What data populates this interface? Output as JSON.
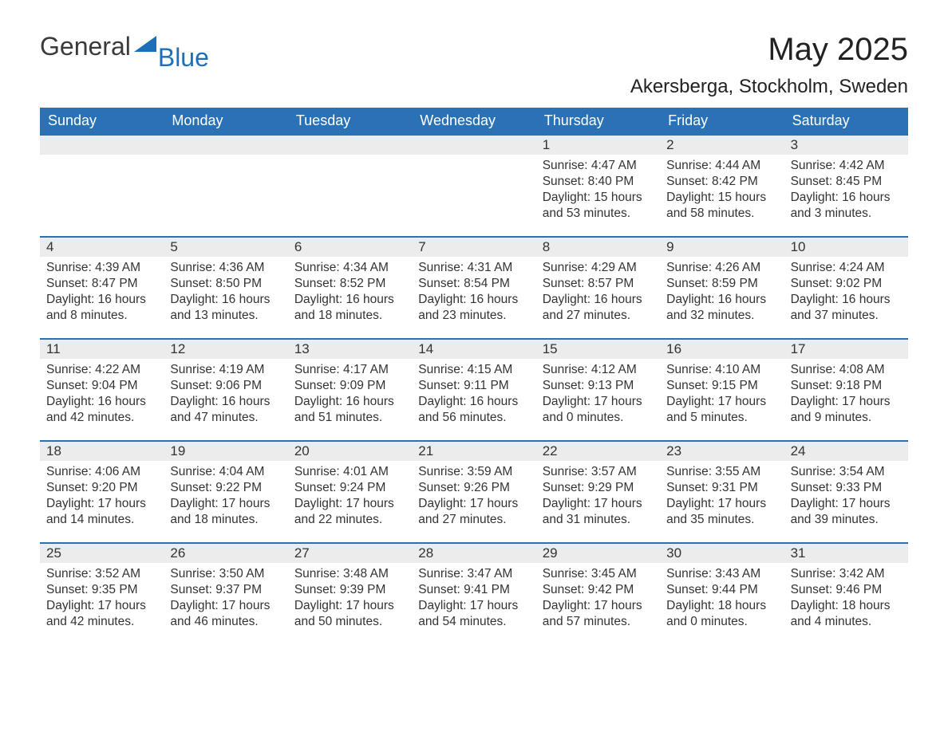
{
  "logo": {
    "text1": "General",
    "text2": "Blue",
    "accent_color": "#1d6fb8"
  },
  "title": {
    "month_year": "May 2025",
    "location": "Akersberga, Stockholm, Sweden"
  },
  "colors": {
    "header_bg": "#2a72b5",
    "header_text": "#ffffff",
    "row_border": "#2a72b5",
    "daynum_bg": "#ececec",
    "body_text": "#333333",
    "page_bg": "#ffffff"
  },
  "fonts": {
    "month_year_size": 40,
    "location_size": 24,
    "dow_size": 18,
    "daynum_size": 17,
    "body_size": 15.5
  },
  "days_of_week": [
    "Sunday",
    "Monday",
    "Tuesday",
    "Wednesday",
    "Thursday",
    "Friday",
    "Saturday"
  ],
  "weeks": [
    [
      {
        "empty": true
      },
      {
        "empty": true
      },
      {
        "empty": true
      },
      {
        "empty": true
      },
      {
        "num": "1",
        "sunrise": "Sunrise: 4:47 AM",
        "sunset": "Sunset: 8:40 PM",
        "daylight": "Daylight: 15 hours and 53 minutes."
      },
      {
        "num": "2",
        "sunrise": "Sunrise: 4:44 AM",
        "sunset": "Sunset: 8:42 PM",
        "daylight": "Daylight: 15 hours and 58 minutes."
      },
      {
        "num": "3",
        "sunrise": "Sunrise: 4:42 AM",
        "sunset": "Sunset: 8:45 PM",
        "daylight": "Daylight: 16 hours and 3 minutes."
      }
    ],
    [
      {
        "num": "4",
        "sunrise": "Sunrise: 4:39 AM",
        "sunset": "Sunset: 8:47 PM",
        "daylight": "Daylight: 16 hours and 8 minutes."
      },
      {
        "num": "5",
        "sunrise": "Sunrise: 4:36 AM",
        "sunset": "Sunset: 8:50 PM",
        "daylight": "Daylight: 16 hours and 13 minutes."
      },
      {
        "num": "6",
        "sunrise": "Sunrise: 4:34 AM",
        "sunset": "Sunset: 8:52 PM",
        "daylight": "Daylight: 16 hours and 18 minutes."
      },
      {
        "num": "7",
        "sunrise": "Sunrise: 4:31 AM",
        "sunset": "Sunset: 8:54 PM",
        "daylight": "Daylight: 16 hours and 23 minutes."
      },
      {
        "num": "8",
        "sunrise": "Sunrise: 4:29 AM",
        "sunset": "Sunset: 8:57 PM",
        "daylight": "Daylight: 16 hours and 27 minutes."
      },
      {
        "num": "9",
        "sunrise": "Sunrise: 4:26 AM",
        "sunset": "Sunset: 8:59 PM",
        "daylight": "Daylight: 16 hours and 32 minutes."
      },
      {
        "num": "10",
        "sunrise": "Sunrise: 4:24 AM",
        "sunset": "Sunset: 9:02 PM",
        "daylight": "Daylight: 16 hours and 37 minutes."
      }
    ],
    [
      {
        "num": "11",
        "sunrise": "Sunrise: 4:22 AM",
        "sunset": "Sunset: 9:04 PM",
        "daylight": "Daylight: 16 hours and 42 minutes."
      },
      {
        "num": "12",
        "sunrise": "Sunrise: 4:19 AM",
        "sunset": "Sunset: 9:06 PM",
        "daylight": "Daylight: 16 hours and 47 minutes."
      },
      {
        "num": "13",
        "sunrise": "Sunrise: 4:17 AM",
        "sunset": "Sunset: 9:09 PM",
        "daylight": "Daylight: 16 hours and 51 minutes."
      },
      {
        "num": "14",
        "sunrise": "Sunrise: 4:15 AM",
        "sunset": "Sunset: 9:11 PM",
        "daylight": "Daylight: 16 hours and 56 minutes."
      },
      {
        "num": "15",
        "sunrise": "Sunrise: 4:12 AM",
        "sunset": "Sunset: 9:13 PM",
        "daylight": "Daylight: 17 hours and 0 minutes."
      },
      {
        "num": "16",
        "sunrise": "Sunrise: 4:10 AM",
        "sunset": "Sunset: 9:15 PM",
        "daylight": "Daylight: 17 hours and 5 minutes."
      },
      {
        "num": "17",
        "sunrise": "Sunrise: 4:08 AM",
        "sunset": "Sunset: 9:18 PM",
        "daylight": "Daylight: 17 hours and 9 minutes."
      }
    ],
    [
      {
        "num": "18",
        "sunrise": "Sunrise: 4:06 AM",
        "sunset": "Sunset: 9:20 PM",
        "daylight": "Daylight: 17 hours and 14 minutes."
      },
      {
        "num": "19",
        "sunrise": "Sunrise: 4:04 AM",
        "sunset": "Sunset: 9:22 PM",
        "daylight": "Daylight: 17 hours and 18 minutes."
      },
      {
        "num": "20",
        "sunrise": "Sunrise: 4:01 AM",
        "sunset": "Sunset: 9:24 PM",
        "daylight": "Daylight: 17 hours and 22 minutes."
      },
      {
        "num": "21",
        "sunrise": "Sunrise: 3:59 AM",
        "sunset": "Sunset: 9:26 PM",
        "daylight": "Daylight: 17 hours and 27 minutes."
      },
      {
        "num": "22",
        "sunrise": "Sunrise: 3:57 AM",
        "sunset": "Sunset: 9:29 PM",
        "daylight": "Daylight: 17 hours and 31 minutes."
      },
      {
        "num": "23",
        "sunrise": "Sunrise: 3:55 AM",
        "sunset": "Sunset: 9:31 PM",
        "daylight": "Daylight: 17 hours and 35 minutes."
      },
      {
        "num": "24",
        "sunrise": "Sunrise: 3:54 AM",
        "sunset": "Sunset: 9:33 PM",
        "daylight": "Daylight: 17 hours and 39 minutes."
      }
    ],
    [
      {
        "num": "25",
        "sunrise": "Sunrise: 3:52 AM",
        "sunset": "Sunset: 9:35 PM",
        "daylight": "Daylight: 17 hours and 42 minutes."
      },
      {
        "num": "26",
        "sunrise": "Sunrise: 3:50 AM",
        "sunset": "Sunset: 9:37 PM",
        "daylight": "Daylight: 17 hours and 46 minutes."
      },
      {
        "num": "27",
        "sunrise": "Sunrise: 3:48 AM",
        "sunset": "Sunset: 9:39 PM",
        "daylight": "Daylight: 17 hours and 50 minutes."
      },
      {
        "num": "28",
        "sunrise": "Sunrise: 3:47 AM",
        "sunset": "Sunset: 9:41 PM",
        "daylight": "Daylight: 17 hours and 54 minutes."
      },
      {
        "num": "29",
        "sunrise": "Sunrise: 3:45 AM",
        "sunset": "Sunset: 9:42 PM",
        "daylight": "Daylight: 17 hours and 57 minutes."
      },
      {
        "num": "30",
        "sunrise": "Sunrise: 3:43 AM",
        "sunset": "Sunset: 9:44 PM",
        "daylight": "Daylight: 18 hours and 0 minutes."
      },
      {
        "num": "31",
        "sunrise": "Sunrise: 3:42 AM",
        "sunset": "Sunset: 9:46 PM",
        "daylight": "Daylight: 18 hours and 4 minutes."
      }
    ]
  ]
}
